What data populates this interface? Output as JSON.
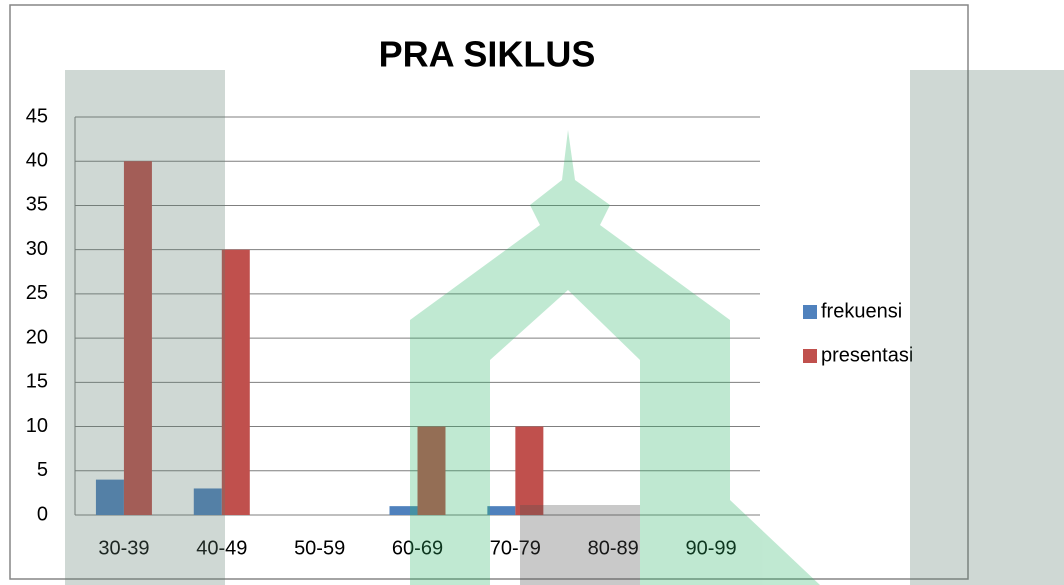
{
  "chart_data": {
    "type": "bar",
    "title": "PRA SIKLUS",
    "categories": [
      "30-39",
      "40-49",
      "50-59",
      "60-69",
      "70-79",
      "80-89",
      "90-99"
    ],
    "series": [
      {
        "name": "frekuensi",
        "color": "#4f81bd",
        "values": [
          4,
          3,
          0,
          1,
          1,
          0,
          0
        ]
      },
      {
        "name": "presentasi",
        "color": "#c0504d",
        "values": [
          40,
          30,
          0,
          10,
          10,
          0,
          0
        ]
      }
    ],
    "ylim": [
      0,
      45
    ],
    "yticks": [
      0,
      5,
      10,
      15,
      20,
      25,
      30,
      35,
      40,
      45
    ],
    "grid": true,
    "legend": "right"
  }
}
